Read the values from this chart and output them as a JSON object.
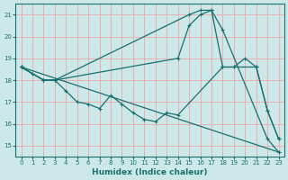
{
  "xlabel": "Humidex (Indice chaleur)",
  "bg_color": "#cce8e8",
  "grid_color": "#e8b0b0",
  "line_color": "#1a7070",
  "xlim": [
    -0.5,
    23.5
  ],
  "ylim": [
    14.5,
    21.5
  ],
  "yticks": [
    15,
    16,
    17,
    18,
    19,
    20,
    21
  ],
  "xticks": [
    0,
    1,
    2,
    3,
    4,
    5,
    6,
    7,
    8,
    9,
    10,
    11,
    12,
    13,
    14,
    15,
    16,
    17,
    18,
    19,
    20,
    21,
    22,
    23
  ],
  "line1": {
    "x": [
      0,
      2,
      3,
      15,
      16,
      17,
      18,
      22,
      23
    ],
    "y": [
      18.6,
      18.0,
      18.0,
      21.0,
      21.2,
      21.2,
      20.3,
      15.3,
      14.7
    ]
  },
  "line2": {
    "x": [
      0,
      2,
      3,
      14,
      15,
      16,
      17,
      18,
      19,
      21,
      22,
      23
    ],
    "y": [
      18.6,
      18.0,
      18.0,
      19.0,
      20.5,
      21.0,
      21.2,
      18.6,
      18.6,
      18.6,
      16.6,
      15.3
    ]
  },
  "line3": {
    "x": [
      0,
      1,
      2,
      3,
      4,
      5,
      6,
      7,
      8,
      9,
      10,
      11,
      12,
      13,
      14,
      18,
      19,
      20,
      21,
      22,
      23
    ],
    "y": [
      18.6,
      18.3,
      18.0,
      18.0,
      17.5,
      17.0,
      16.9,
      16.7,
      17.3,
      16.9,
      16.5,
      16.2,
      16.1,
      16.5,
      16.4,
      18.6,
      18.6,
      19.0,
      18.6,
      16.6,
      15.3
    ]
  },
  "line4": {
    "x": [
      0,
      23
    ],
    "y": [
      18.6,
      14.7
    ]
  }
}
